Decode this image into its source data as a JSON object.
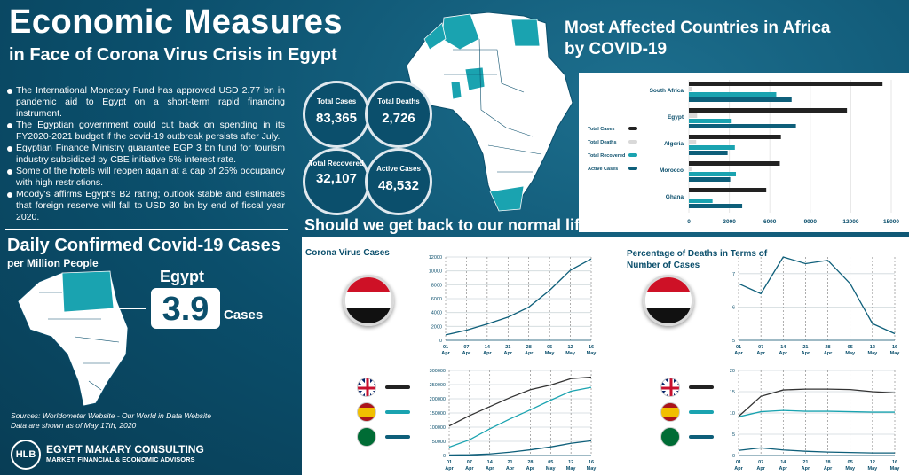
{
  "header": {
    "title": "Economic Measures",
    "subtitle": "in Face of Corona Virus Crisis in Egypt"
  },
  "bullets": [
    "The International Monetary Fund has approved USD 2.77 bn in pandemic aid to Egypt on a short-term rapid financing instrument.",
    "The Egyptian government could cut back on spending in its FY2020-2021 budget if the covid-19 outbreak persists after July.",
    "Egyptian Finance Ministry guarantee EGP 3 bn fund for tourism industry subsidized by CBE initiative 5% interest rate.",
    "Some of the hotels will reopen again at a cap of 25% occupancy with high restrictions.",
    "Moody's affirms Egypt's B2 rating; outlook stable and estimates that foreign reserve will fall to USD 30 bn by end of fiscal year 2020."
  ],
  "stats": {
    "total_cases_label": "Total Cases",
    "total_cases": "83,365",
    "total_deaths_label": "Total Deaths",
    "total_deaths": "2,726",
    "total_recovered_label": "Total Recovered",
    "total_recovered": "32,107",
    "active_cases_label": "Active Cases",
    "active_cases": "48,532"
  },
  "daily": {
    "title": "Daily Confirmed Covid-19 Cases",
    "subtitle": "per Million People",
    "country": "Egypt",
    "value": "3.9",
    "unit": "Cases"
  },
  "source": {
    "line1": "Sources: Worldometer Website - Our World in Data Website",
    "line2": "Data are shown as of May 17th, 2020"
  },
  "logo": {
    "mark": "HLB",
    "name": "EGYPT MAKARY CONSULTING",
    "tagline": "MARKET, FINANCIAL & ECONOMIC ADVISORS"
  },
  "most_affected": {
    "title_line1": "Most Affected  Countries in Africa",
    "title_line2": "by COVID-19"
  },
  "question": "Should we get back to our normal life ?",
  "colors": {
    "teal_dark": "#0b4f6c",
    "total_cases": "#222222",
    "total_deaths": "#d9d9d9",
    "total_recovered": "#1aa3b0",
    "active_cases": "#0e5f7a"
  },
  "chart_data": [
    {
      "type": "bar",
      "orientation": "horizontal",
      "categories": [
        "South Africa",
        "Egypt",
        "Algeria",
        "Morocco",
        "Ghana"
      ],
      "series": [
        {
          "name": "Total Cases",
          "values": [
            14355,
            11719,
            6821,
            6741,
            5735
          ]
        },
        {
          "name": "Total Deaths",
          "values": [
            261,
            612,
            542,
            188,
            29
          ]
        },
        {
          "name": "Total Recovered",
          "values": [
            6478,
            3172,
            3409,
            3487,
            1754
          ]
        },
        {
          "name": "Active Cases",
          "values": [
            7616,
            7935,
            2870,
            3066,
            3952
          ]
        }
      ],
      "xlim": [
        0,
        15000
      ],
      "xticks": [
        "0",
        "3000",
        "6000",
        "9000",
        "12000",
        "15000"
      ],
      "legend": "left"
    },
    {
      "type": "line",
      "title": "Corona Virus Cases",
      "x": [
        "01 Apr",
        "07 Apr",
        "14 Apr",
        "21 Apr",
        "28 Apr",
        "05 May",
        "12 May",
        "16 May"
      ],
      "series": [
        {
          "values": [
            779,
            1450,
            2350,
            3333,
            4782,
            7201,
            10093,
            11719
          ]
        }
      ],
      "ylim": [
        0,
        12000
      ],
      "yticks": [
        "0",
        "2000",
        "4000",
        "6000",
        "8000",
        "10000",
        "12000"
      ]
    },
    {
      "type": "line",
      "title": "Percentage of Deaths in Terms of Number of Cases",
      "x": [
        "01 Apr",
        "07 Apr",
        "14 Apr",
        "21 Apr",
        "28 Apr",
        "05 May",
        "12 May",
        "16 May"
      ],
      "series": [
        {
          "values": [
            6.7,
            6.4,
            7.5,
            7.3,
            7.4,
            6.7,
            5.5,
            5.2
          ]
        }
      ],
      "ylim": [
        5,
        7.5
      ],
      "yticks": [
        "5",
        "6",
        "7"
      ]
    },
    {
      "type": "line",
      "x": [
        "01 Apr",
        "07 Apr",
        "14 Apr",
        "21 Apr",
        "28 Apr",
        "05 May",
        "12 May",
        "16 May"
      ],
      "series": [
        {
          "values": [
            29474,
            55242,
            93873,
            129044,
            161145,
            194990,
            226463,
            240161
          ]
        },
        {
          "values": [
            104118,
            140510,
            172541,
            204178,
            232128,
            248301,
            271095,
            276505
          ]
        },
        {
          "values": [
            1720,
            2605,
            5369,
            11631,
            20077,
            30251,
            42925,
            52016
          ]
        }
      ],
      "ylim": [
        0,
        300000
      ],
      "yticks": [
        "0",
        "50000",
        "100000",
        "150000",
        "200000",
        "250000",
        "300000"
      ]
    },
    {
      "type": "line",
      "x": [
        "01 Apr",
        "07 Apr",
        "14 Apr",
        "21 Apr",
        "28 Apr",
        "05 May",
        "12 May",
        "16 May"
      ],
      "series": [
        {
          "values": [
            9.1,
            10.3,
            10.6,
            10.4,
            10.4,
            10.3,
            10.2,
            10.2
          ]
        },
        {
          "values": [
            9.2,
            13.9,
            15.4,
            15.6,
            15.6,
            15.5,
            15.0,
            14.7
          ]
        },
        {
          "values": [
            1.2,
            1.8,
            1.3,
            1.0,
            0.8,
            0.7,
            0.6,
            0.6
          ]
        }
      ],
      "ylim": [
        0,
        20
      ],
      "yticks": [
        "0",
        "5",
        "10",
        "15",
        "20"
      ]
    }
  ]
}
